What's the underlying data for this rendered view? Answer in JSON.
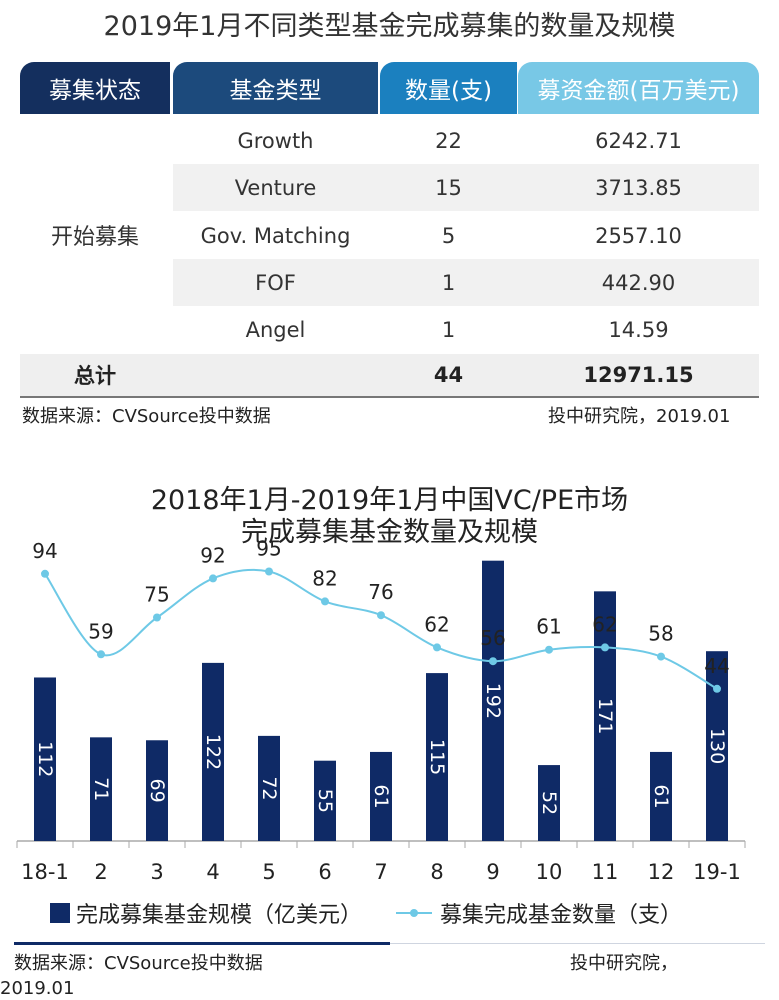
{
  "top_title": "2019年1月不同类型基金完成募集的数量及规模",
  "table": {
    "headers": [
      "募集状态",
      "基金类型",
      "数量(支)",
      "募资金额(百万美元)"
    ],
    "status": "开始募集",
    "rows": [
      {
        "type": "Growth",
        "count": "22",
        "amount": "6242.71"
      },
      {
        "type": "Venture",
        "count": "15",
        "amount": "3713.85"
      },
      {
        "type": "Gov. Matching",
        "count": "5",
        "amount": "2557.10"
      },
      {
        "type": "FOF",
        "count": "1",
        "amount": "442.90"
      },
      {
        "type": "Angel",
        "count": "1",
        "amount": "14.59"
      }
    ],
    "total": {
      "label": "总计",
      "count": "44",
      "amount": "12971.15"
    }
  },
  "source1_left": "数据来源：CVSource投中数据",
  "source1_right": "投中研究院，2019.01",
  "chart_title_line1": "2018年1月-2019年1月中国VC/PE市场",
  "chart_title_line2": "完成募集基金数量及规模",
  "chart_data": {
    "type": "bar",
    "categories": [
      "18-1",
      "2",
      "3",
      "4",
      "5",
      "6",
      "7",
      "8",
      "9",
      "10",
      "11",
      "12",
      "19-1"
    ],
    "series": [
      {
        "name": "完成募集基金规模（亿美元）",
        "type": "bar",
        "color": "#0f2a66",
        "values": [
          112,
          71,
          69,
          122,
          72,
          55,
          61,
          115,
          192,
          52,
          171,
          61,
          130
        ]
      },
      {
        "name": "募集完成基金数量（支）",
        "type": "line",
        "color": "#6ec9e6",
        "values": [
          94,
          59,
          75,
          92,
          95,
          82,
          76,
          62,
          56,
          61,
          62,
          58,
          44
        ]
      }
    ],
    "grid": false,
    "legend": "bottom"
  },
  "source2_left": "数据来源：CVSource投中数据",
  "source2_right_line1": "投中研究院，",
  "source2_right_line2": "2019.01"
}
